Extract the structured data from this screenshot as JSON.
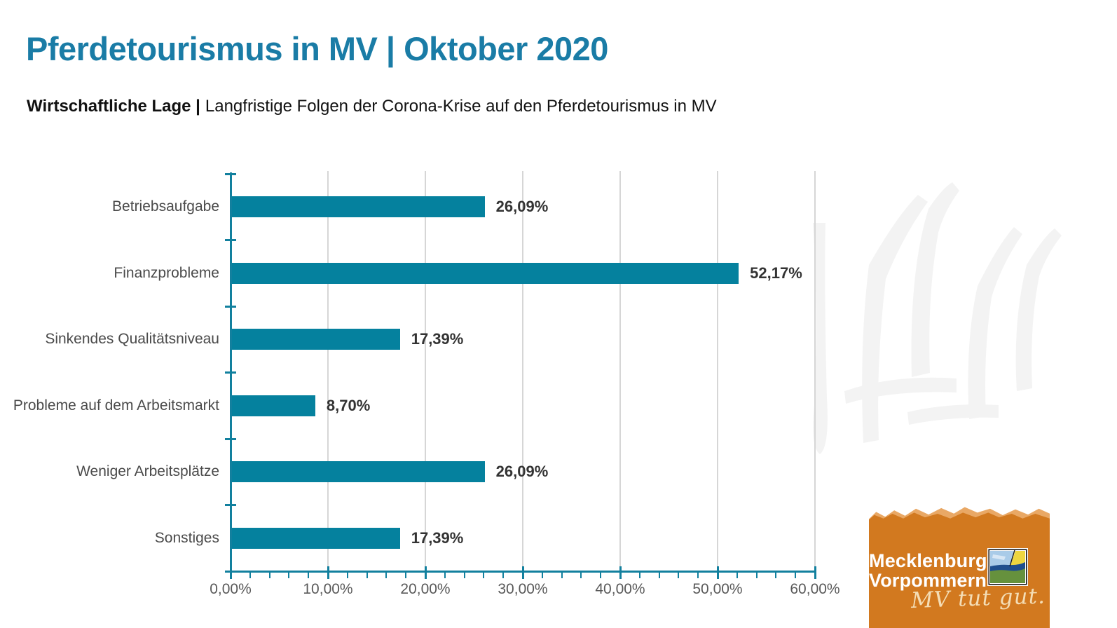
{
  "page": {
    "title": "Pferdetourismus in MV | Oktober 2020",
    "title_color": "#1A7CA6",
    "subtitle_bold": "Wirtschaftliche Lage |",
    "subtitle_rest": "Langfristige Folgen der Corona-Krise auf den Pferdetourismus in MV"
  },
  "chart_data": {
    "type": "bar",
    "orientation": "horizontal",
    "title": "",
    "xlabel": "",
    "ylabel": "",
    "categories": [
      "Betriebsaufgabe",
      "Finanzprobleme",
      "Sinkendes Qualitätsniveau",
      "Probleme auf dem Arbeitsmarkt",
      "Weniger Arbeitsplätze",
      "Sonstiges"
    ],
    "values": [
      26.09,
      52.17,
      17.39,
      8.7,
      26.09,
      17.39
    ],
    "value_labels": [
      "26,09%",
      "52,17%",
      "17,39%",
      "8,70%",
      "26,09%",
      "17,39%"
    ],
    "x_tick_labels": [
      "0,00%",
      "10,00%",
      "20,00%",
      "30,00%",
      "40,00%",
      "50,00%",
      "60,00%"
    ],
    "xlim": [
      0,
      60
    ],
    "x_major_step_pct": 10,
    "x_minor_step_pct": 2,
    "grid": true,
    "legend": "none",
    "colors": {
      "bar": "#05819E",
      "axis": "#12809E",
      "gridline": "#D6D6D6",
      "category_label": "#4A4A4A",
      "value_label": "#333333",
      "tick_label": "#595959"
    }
  },
  "logo": {
    "region_line1": "Mecklenburg",
    "region_line2": "Vorpommern",
    "tagline": "MV tut gut.",
    "colors": {
      "background": "#D2791F",
      "torn_edge": "#E9A865",
      "text": "#FFFFFF",
      "tagline": "#F4DDB5"
    }
  }
}
